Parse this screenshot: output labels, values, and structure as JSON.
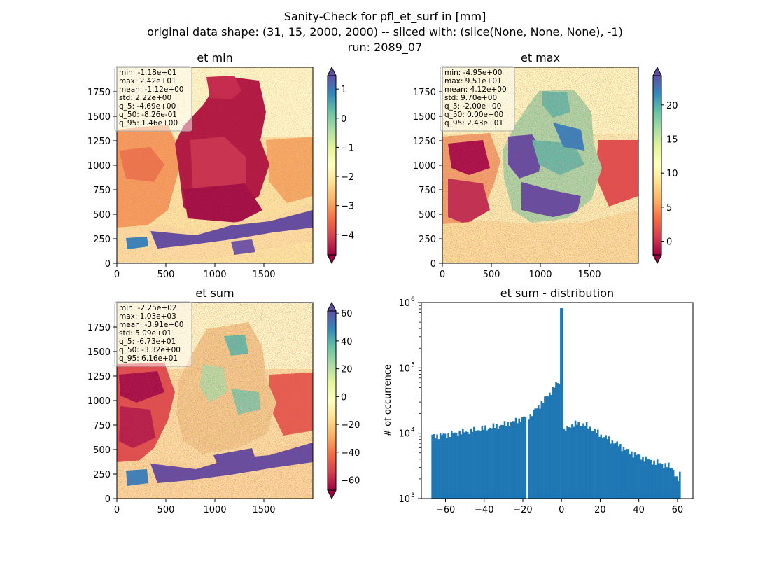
{
  "figure": {
    "title_lines": [
      "Sanity-Check for pfl_et_surf in [mm]",
      "original data shape: (31, 15, 2000, 2000) -- sliced with: (slice(None, None, None), -1)",
      "run: 2089_07"
    ]
  },
  "colormap": {
    "name": "Spectral",
    "stops": [
      "#9e0142",
      "#d53e4f",
      "#f46d43",
      "#fdae61",
      "#fee08b",
      "#ffffbf",
      "#e6f598",
      "#abdda4",
      "#66c2a5",
      "#3288bd",
      "#5e4fa2"
    ]
  },
  "panels": [
    {
      "title": "et min",
      "stats": [
        "min: -1.18e+01",
        "max: 2.42e+01",
        "mean: -1.12e+00",
        "std: 2.22e+00",
        "q_5: -4.69e+00",
        "q_50: -8.26e-01",
        "q_95: 1.46e+00"
      ],
      "xticks": [
        "0",
        "500",
        "1000",
        "1500"
      ],
      "yticks": [
        "0",
        "250",
        "500",
        "750",
        "1000",
        "1250",
        "1500",
        "1750"
      ],
      "colorbar": {
        "vmin": -4.69,
        "vmax": 1.46,
        "ticks": [
          1,
          0,
          -1,
          -2,
          -3,
          -4
        ],
        "tick_labels": [
          "1",
          "0",
          "−1",
          "−2",
          "−3",
          "−4"
        ]
      }
    },
    {
      "title": "et max",
      "stats": [
        "min: -4.95e+00",
        "max: 9.51e+01",
        "mean: 4.12e+00",
        "std: 9.70e+00",
        "q_5: -2.00e+00",
        "q_50: 0.00e+00",
        "q_95: 2.43e+01"
      ],
      "xticks": [
        "0",
        "500",
        "1000",
        "1500"
      ],
      "yticks": [
        "0",
        "250",
        "500",
        "750",
        "1000",
        "1250",
        "1500",
        "1750"
      ],
      "colorbar": {
        "vmin": -2.0,
        "vmax": 24.3,
        "ticks": [
          20,
          15,
          10,
          5,
          0
        ],
        "tick_labels": [
          "20",
          "15",
          "10",
          "5",
          "0"
        ]
      }
    },
    {
      "title": "et sum",
      "stats": [
        "min: -2.25e+02",
        "max: 1.03e+03",
        "mean: -3.91e+00",
        "std: 5.09e+01",
        "q_5: -6.73e+01",
        "q_50: -3.32e+00",
        "q_95: 6.16e+01"
      ],
      "xticks": [
        "0",
        "500",
        "1000",
        "1500"
      ],
      "yticks": [
        "0",
        "250",
        "500",
        "750",
        "1000",
        "1250",
        "1500",
        "1750"
      ],
      "colorbar": {
        "vmin": -67.3,
        "vmax": 61.6,
        "ticks": [
          60,
          40,
          20,
          0,
          -20,
          -40,
          -60
        ],
        "tick_labels": [
          "60",
          "40",
          "20",
          "0",
          "−20",
          "−40",
          "−60"
        ]
      }
    }
  ],
  "chart_data": {
    "type": "bar",
    "title": "et sum - distribution",
    "xlabel": "",
    "ylabel": "# of occurrence",
    "xlim": [
      -72.5,
      68
    ],
    "ylim_log10": [
      3,
      6
    ],
    "y_scale": "log",
    "xticks": [
      -60,
      -40,
      -20,
      0,
      20,
      40,
      60
    ],
    "xtick_labels": [
      "−60",
      "−40",
      "−20",
      "0",
      "20",
      "40",
      "60"
    ],
    "yticks_log10": [
      3,
      4,
      5,
      6
    ],
    "ytick_labels": [
      "10",
      "10",
      "10",
      "10"
    ],
    "ytick_exponents": [
      "3",
      "4",
      "5",
      "6"
    ],
    "bin_start": -67.3,
    "bin_end": 61.6,
    "bin_count": 155,
    "bar_color": "#1f77b4",
    "shape_points": [
      [
        -67.3,
        9000
      ],
      [
        -60,
        9500
      ],
      [
        -50,
        10500
      ],
      [
        -40,
        11800
      ],
      [
        -30,
        13500
      ],
      [
        -25,
        15000
      ],
      [
        -20,
        17000
      ],
      [
        -16,
        19000
      ],
      [
        -13,
        24000
      ],
      [
        -10,
        30000
      ],
      [
        -7,
        38000
      ],
      [
        -4,
        50000
      ],
      [
        -3,
        55000
      ],
      [
        -1.5,
        60000
      ],
      [
        -0.5,
        62000
      ],
      [
        -0.2,
        820000
      ],
      [
        0.2,
        820000
      ],
      [
        0.5,
        9800
      ],
      [
        2,
        11000
      ],
      [
        4,
        13000
      ],
      [
        8,
        14000
      ],
      [
        12,
        13500
      ],
      [
        16,
        11500
      ],
      [
        20,
        9500
      ],
      [
        25,
        8000
      ],
      [
        30,
        6500
      ],
      [
        35,
        5200
      ],
      [
        40,
        4500
      ],
      [
        45,
        3900
      ],
      [
        50,
        3500
      ],
      [
        55,
        3200
      ],
      [
        58,
        2800
      ],
      [
        60,
        1800
      ],
      [
        61.6,
        2500
      ]
    ],
    "gap_at": -17.8
  }
}
